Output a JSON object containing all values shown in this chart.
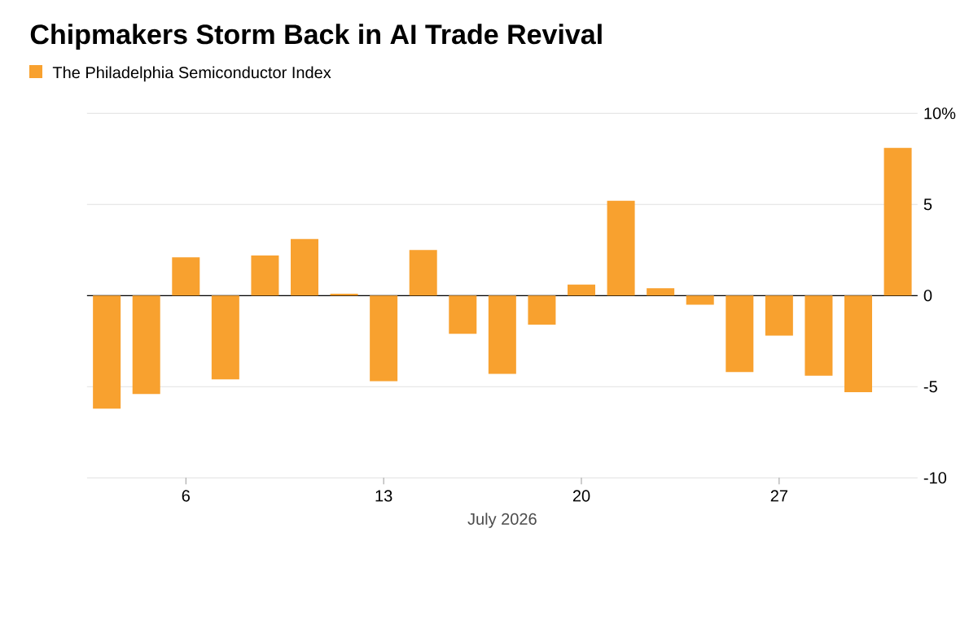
{
  "chart_data": {
    "type": "bar",
    "title": "Chipmakers Storm Back in AI Trade Revival",
    "xlabel": "July 2026",
    "categories": [
      null,
      null,
      "6",
      null,
      null,
      null,
      null,
      "13",
      null,
      null,
      null,
      null,
      "20",
      null,
      null,
      null,
      null,
      "27",
      null,
      null,
      null
    ],
    "series": [
      {
        "name": "The Philadelphia Semiconductor Index",
        "color": "#f8a12f",
        "values": [
          -6.2,
          -5.4,
          2.1,
          -4.6,
          2.2,
          3.1,
          0.1,
          -4.7,
          2.5,
          -2.1,
          -4.3,
          -1.6,
          0.6,
          5.2,
          0.4,
          -0.5,
          -4.2,
          -2.2,
          -4.4,
          -5.3,
          8.1
        ]
      }
    ],
    "ylim": [
      -10,
      10
    ],
    "yticks": [
      -10,
      -5,
      0,
      5,
      {
        "value": 10,
        "label": "10%"
      }
    ],
    "grid": "y",
    "legend": "top left"
  }
}
